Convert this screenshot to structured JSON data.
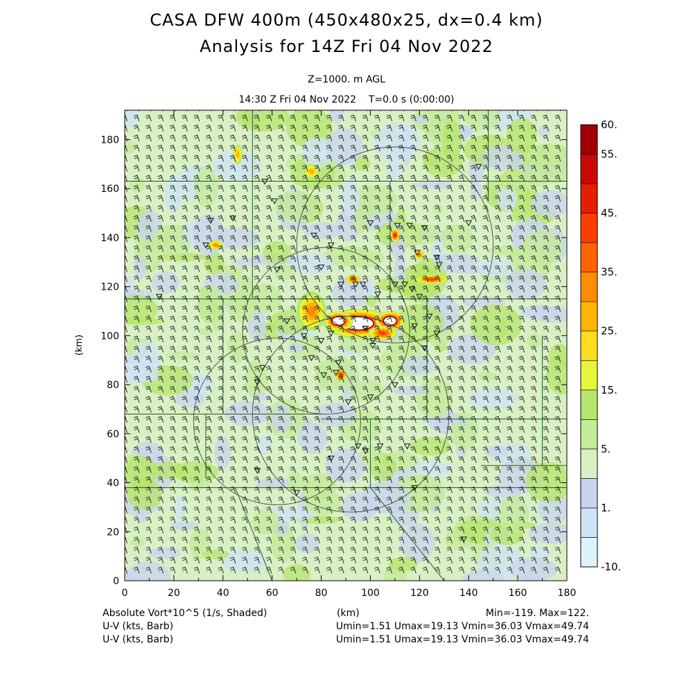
{
  "header": {
    "title_line1": "CASA DFW 400m (450x480x25, dx=0.4 km)",
    "title_line2": "Analysis for 14Z Fri 04 Nov 2022",
    "level": "Z=1000. m AGL",
    "time": "14:30 Z Fri 04 Nov 2022    T=0.0 s (0:00:00)"
  },
  "footer": {
    "field_label": "Absolute Vort*10^5 (1/s, Shaded)",
    "x_unit": "(km)",
    "minmax": "Min=-119. Max=122.",
    "barb1_label": "U-V (kts, Barb)",
    "barb1_stats": "Umin=1.51 Umax=19.13 Vmin=36.03 Vmax=49.74",
    "barb2_label": "U-V (kts, Barb)",
    "barb2_stats": "Umin=1.51 Umax=19.13 Vmin=36.03 Vmax=49.74"
  },
  "chart_data": {
    "type": "heatmap",
    "xlabel": "(km)",
    "ylabel": "(km)",
    "xlim": [
      0,
      180
    ],
    "ylim": [
      0,
      192
    ],
    "x_ticks": [
      0,
      20,
      40,
      60,
      80,
      100,
      120,
      140,
      160,
      180
    ],
    "y_ticks": [
      0,
      20,
      40,
      60,
      80,
      100,
      120,
      140,
      160,
      180
    ],
    "colorbar": {
      "levels": [
        -10,
        -5,
        1,
        3,
        5,
        10,
        15,
        20,
        25,
        30,
        35,
        40,
        45,
        50,
        55,
        60
      ],
      "labels": [
        {
          "value": -10,
          "text": "-10."
        },
        {
          "value": 1,
          "text": "1."
        },
        {
          "value": 5,
          "text": "5."
        },
        {
          "value": 15,
          "text": "15."
        },
        {
          "value": 25,
          "text": "25."
        },
        {
          "value": 35,
          "text": "35."
        },
        {
          "value": 45,
          "text": "45."
        },
        {
          "value": 55,
          "text": "55."
        },
        {
          "value": 60,
          "text": "60."
        }
      ],
      "colors": [
        "#dff2fb",
        "#cfe3f5",
        "#c9d4ef",
        "#d8f0c4",
        "#c3eb98",
        "#b6e66c",
        "#e8f53a",
        "#ffdc1e",
        "#ffb400",
        "#ff8c00",
        "#ff6400",
        "#ff3c00",
        "#e61e00",
        "#c80a00",
        "#a00000"
      ]
    },
    "features": {
      "radar_sites": [
        [
          82,
          102
        ],
        [
          62,
          65
        ],
        [
          92,
          68
        ],
        [
          110,
          137
        ]
      ],
      "radar_rings": [
        [
          82,
          102,
          34
        ],
        [
          62,
          65,
          34
        ],
        [
          92,
          68,
          40
        ],
        [
          110,
          137,
          40
        ]
      ],
      "storm_cells": [
        {
          "x": 95,
          "y": 105,
          "rx": 14,
          "ry": 6,
          "peak": 55
        },
        {
          "x": 108,
          "y": 106,
          "rx": 6,
          "ry": 4,
          "peak": 60
        },
        {
          "x": 87,
          "y": 106,
          "rx": 6,
          "ry": 4,
          "peak": 55
        },
        {
          "x": 88,
          "y": 84,
          "rx": 2.5,
          "ry": 2.5,
          "peak": 45
        },
        {
          "x": 105,
          "y": 101,
          "rx": 6,
          "ry": 3,
          "peak": 40
        },
        {
          "x": 110,
          "y": 141,
          "rx": 2,
          "ry": 3,
          "peak": 45
        },
        {
          "x": 125,
          "y": 123,
          "rx": 7,
          "ry": 2,
          "peak": 40
        },
        {
          "x": 93,
          "y": 123,
          "rx": 3,
          "ry": 2,
          "peak": 40
        },
        {
          "x": 76,
          "y": 110,
          "rx": 6,
          "ry": 8,
          "peak": 30
        },
        {
          "x": 37,
          "y": 137,
          "rx": 3,
          "ry": 2,
          "peak": 30
        },
        {
          "x": 46,
          "y": 174,
          "rx": 2,
          "ry": 4,
          "peak": 25
        },
        {
          "x": 76,
          "y": 167,
          "rx": 3,
          "ry": 3,
          "peak": 25
        },
        {
          "x": 120,
          "y": 133,
          "rx": 2,
          "ry": 2,
          "peak": 35
        }
      ],
      "station_markers": [
        [
          14,
          116
        ],
        [
          35,
          147
        ],
        [
          33,
          137
        ],
        [
          57,
          163
        ],
        [
          61,
          155
        ],
        [
          44,
          148
        ],
        [
          62,
          127
        ],
        [
          77,
          141
        ],
        [
          84,
          137
        ],
        [
          80,
          128
        ],
        [
          88,
          121
        ],
        [
          94,
          121
        ],
        [
          97,
          121
        ],
        [
          100,
          146
        ],
        [
          103,
          117
        ],
        [
          111,
          145
        ],
        [
          116,
          145
        ],
        [
          119,
          134
        ],
        [
          122,
          144
        ],
        [
          114,
          121
        ],
        [
          117,
          119
        ],
        [
          120,
          116
        ],
        [
          127,
          132
        ],
        [
          128,
          129
        ],
        [
          124,
          108
        ],
        [
          84,
          101
        ],
        [
          76,
          91
        ],
        [
          81,
          84
        ],
        [
          87,
          89
        ],
        [
          56,
          87
        ],
        [
          54,
          81
        ],
        [
          66,
          106
        ],
        [
          91,
          73
        ],
        [
          95,
          55
        ],
        [
          98,
          53
        ],
        [
          84,
          50
        ],
        [
          104,
          55
        ],
        [
          115,
          55
        ],
        [
          118,
          38
        ],
        [
          140,
          146
        ],
        [
          144,
          169
        ],
        [
          101,
          98
        ],
        [
          101,
          96
        ],
        [
          138,
          17
        ],
        [
          70,
          36
        ],
        [
          54,
          45
        ],
        [
          122,
          95
        ],
        [
          127,
          101
        ],
        [
          80,
          98
        ],
        [
          73,
          100
        ],
        [
          86,
          85
        ],
        [
          98,
          103
        ],
        [
          118,
          104
        ],
        [
          110,
          121
        ],
        [
          100,
          75
        ],
        [
          110,
          80
        ]
      ]
    }
  }
}
